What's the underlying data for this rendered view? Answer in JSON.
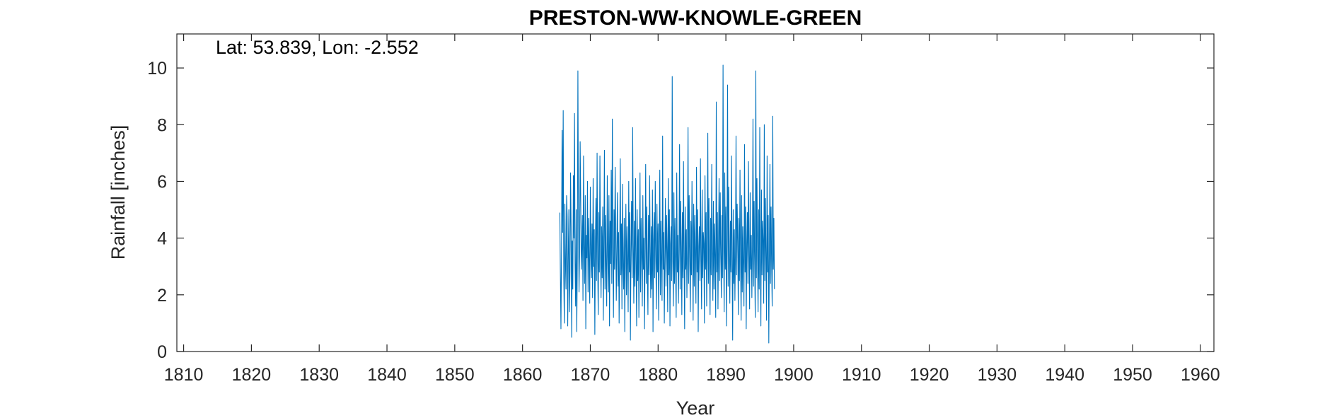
{
  "chart_data": {
    "type": "line",
    "title": "PRESTON-WW-KNOWLE-GREEN",
    "annotation": "Lat: 53.839, Lon: -2.552",
    "xlabel": "Year",
    "ylabel": "Rainfall [inches]",
    "xlim": [
      1809,
      1962
    ],
    "ylim": [
      0,
      11.2
    ],
    "xticks": [
      1810,
      1820,
      1830,
      1840,
      1850,
      1860,
      1870,
      1880,
      1890,
      1900,
      1910,
      1920,
      1930,
      1940,
      1950,
      1960
    ],
    "yticks": [
      0,
      2,
      4,
      6,
      8,
      10
    ],
    "grid": false,
    "series": [
      {
        "color": "#0072BD",
        "x_start": 1865.5,
        "step": 0.08333,
        "values": [
          4.9,
          2.8,
          0.8,
          3.5,
          7.8,
          4.2,
          8.5,
          2.6,
          1.0,
          5.2,
          3.1,
          2.2,
          5.5,
          4.8,
          0.9,
          3.4,
          5.0,
          1.4,
          2.8,
          6.3,
          4.4,
          0.5,
          3.9,
          2.2,
          6.2,
          4.0,
          8.4,
          3.1,
          1.6,
          5.0,
          0.7,
          3.3,
          9.9,
          4.6,
          2.1,
          3.5,
          7.4,
          5.3,
          2.9,
          3.6,
          4.8,
          1.8,
          6.9,
          3.7,
          2.4,
          5.5,
          0.8,
          4.1,
          3.3,
          6.0,
          2.1,
          4.7,
          3.2,
          1.7,
          5.8,
          3.5,
          2.6,
          4.5,
          1.9,
          6.1,
          3.0,
          4.3,
          0.6,
          3.8,
          5.4,
          2.5,
          7.0,
          3.2,
          1.3,
          4.9,
          2.8,
          6.9,
          3.6,
          1.9,
          4.4,
          2.6,
          5.1,
          1.1,
          3.9,
          7.1,
          2.2,
          4.8,
          3.0,
          1.6,
          6.2,
          3.4,
          2.1,
          5.5,
          0.9,
          4.6,
          3.1,
          6.4,
          2.4,
          8.2,
          3.5,
          1.2,
          5.0,
          2.9,
          6.5,
          4.1,
          1.8,
          3.7,
          5.6,
          2.3,
          4.2,
          1.0,
          3.3,
          6.8,
          2.7,
          4.5,
          1.5,
          5.9,
          3.0,
          2.2,
          4.7,
          0.7,
          3.6,
          5.2,
          2.0,
          4.4,
          3.1,
          1.4,
          6.0,
          2.8,
          4.9,
          0.4,
          3.5,
          5.3,
          2.6,
          7.9,
          3.9,
          1.7,
          4.6,
          2.3,
          6.1,
          3.2,
          0.9,
          5.0,
          2.5,
          4.3,
          1.2,
          3.8,
          6.3,
          2.1,
          4.7,
          3.4,
          1.6,
          5.5,
          2.9,
          4.0,
          0.8,
          3.6,
          6.6,
          2.4,
          5.1,
          3.0,
          1.3,
          4.8,
          2.7,
          6.2,
          3.5,
          1.9,
          4.4,
          2.2,
          5.7,
          0.7,
          3.9,
          4.9,
          2.6,
          6.0,
          3.3,
          1.5,
          5.2,
          2.8,
          4.5,
          1.1,
          3.7,
          6.4,
          2.0,
          4.6,
          3.1,
          1.8,
          7.6,
          2.9,
          4.2,
          1.0,
          3.4,
          5.4,
          2.3,
          4.8,
          3.6,
          1.4,
          6.1,
          2.7,
          5.0,
          0.9,
          3.8,
          4.4,
          2.5,
          9.7,
          3.2,
          1.6,
          5.6,
          2.4,
          4.7,
          3.0,
          1.2,
          6.3,
          2.8,
          4.1,
          1.7,
          3.5,
          7.3,
          2.2,
          5.3,
          3.7,
          1.3,
          4.9,
          2.6,
          6.7,
          3.1,
          0.8,
          5.1,
          2.9,
          4.3,
          1.9,
          3.6,
          7.9,
          2.4,
          5.5,
          3.3,
          1.4,
          4.6,
          2.7,
          6.0,
          3.9,
          1.1,
          5.2,
          2.3,
          4.8,
          3.4,
          1.7,
          6.5,
          2.8,
          5.0,
          0.7,
          3.7,
          4.4,
          2.5,
          6.8,
          3.2,
          1.5,
          5.7,
          2.6,
          4.2,
          3.8,
          1.0,
          6.2,
          2.9,
          4.9,
          1.6,
          3.5,
          7.7,
          2.4,
          5.4,
          3.1,
          1.3,
          4.7,
          2.7,
          6.6,
          3.6,
          1.8,
          5.3,
          2.2,
          4.5,
          3.3,
          1.2,
          8.8,
          2.8,
          4.9,
          1.5,
          3.9,
          6.1,
          2.5,
          5.6,
          3.4,
          1.9,
          4.8,
          2.6,
          10.1,
          3.7,
          1.4,
          6.3,
          2.9,
          5.1,
          0.9,
          4.0,
          9.4,
          2.3,
          5.8,
          3.5,
          1.7,
          4.6,
          2.8,
          6.9,
          3.2,
          0.4,
          5.0,
          2.4,
          4.3,
          1.8,
          3.6,
          7.6,
          2.7,
          5.2,
          3.9,
          1.3,
          4.7,
          2.5,
          6.4,
          3.3,
          1.1,
          5.5,
          2.1,
          4.4,
          3.0,
          1.6,
          7.3,
          2.8,
          5.1,
          0.8,
          3.8,
          4.9,
          2.4,
          6.7,
          3.4,
          1.5,
          5.6,
          2.9,
          4.1,
          1.9,
          3.7,
          8.2,
          2.3,
          5.3,
          3.1,
          1.2,
          9.9,
          2.6,
          6.1,
          3.6,
          1.4,
          5.0,
          2.2,
          7.9,
          3.2,
          0.9,
          5.7,
          2.7,
          4.6,
          3.9,
          1.7,
          8.0,
          2.5,
          5.4,
          3.3,
          1.1,
          6.9,
          2.8,
          4.8,
          0.3,
          3.5,
          6.6,
          2.4,
          5.1,
          3.0,
          1.6,
          8.3,
          2.9,
          4.7,
          2.2
        ]
      }
    ]
  }
}
